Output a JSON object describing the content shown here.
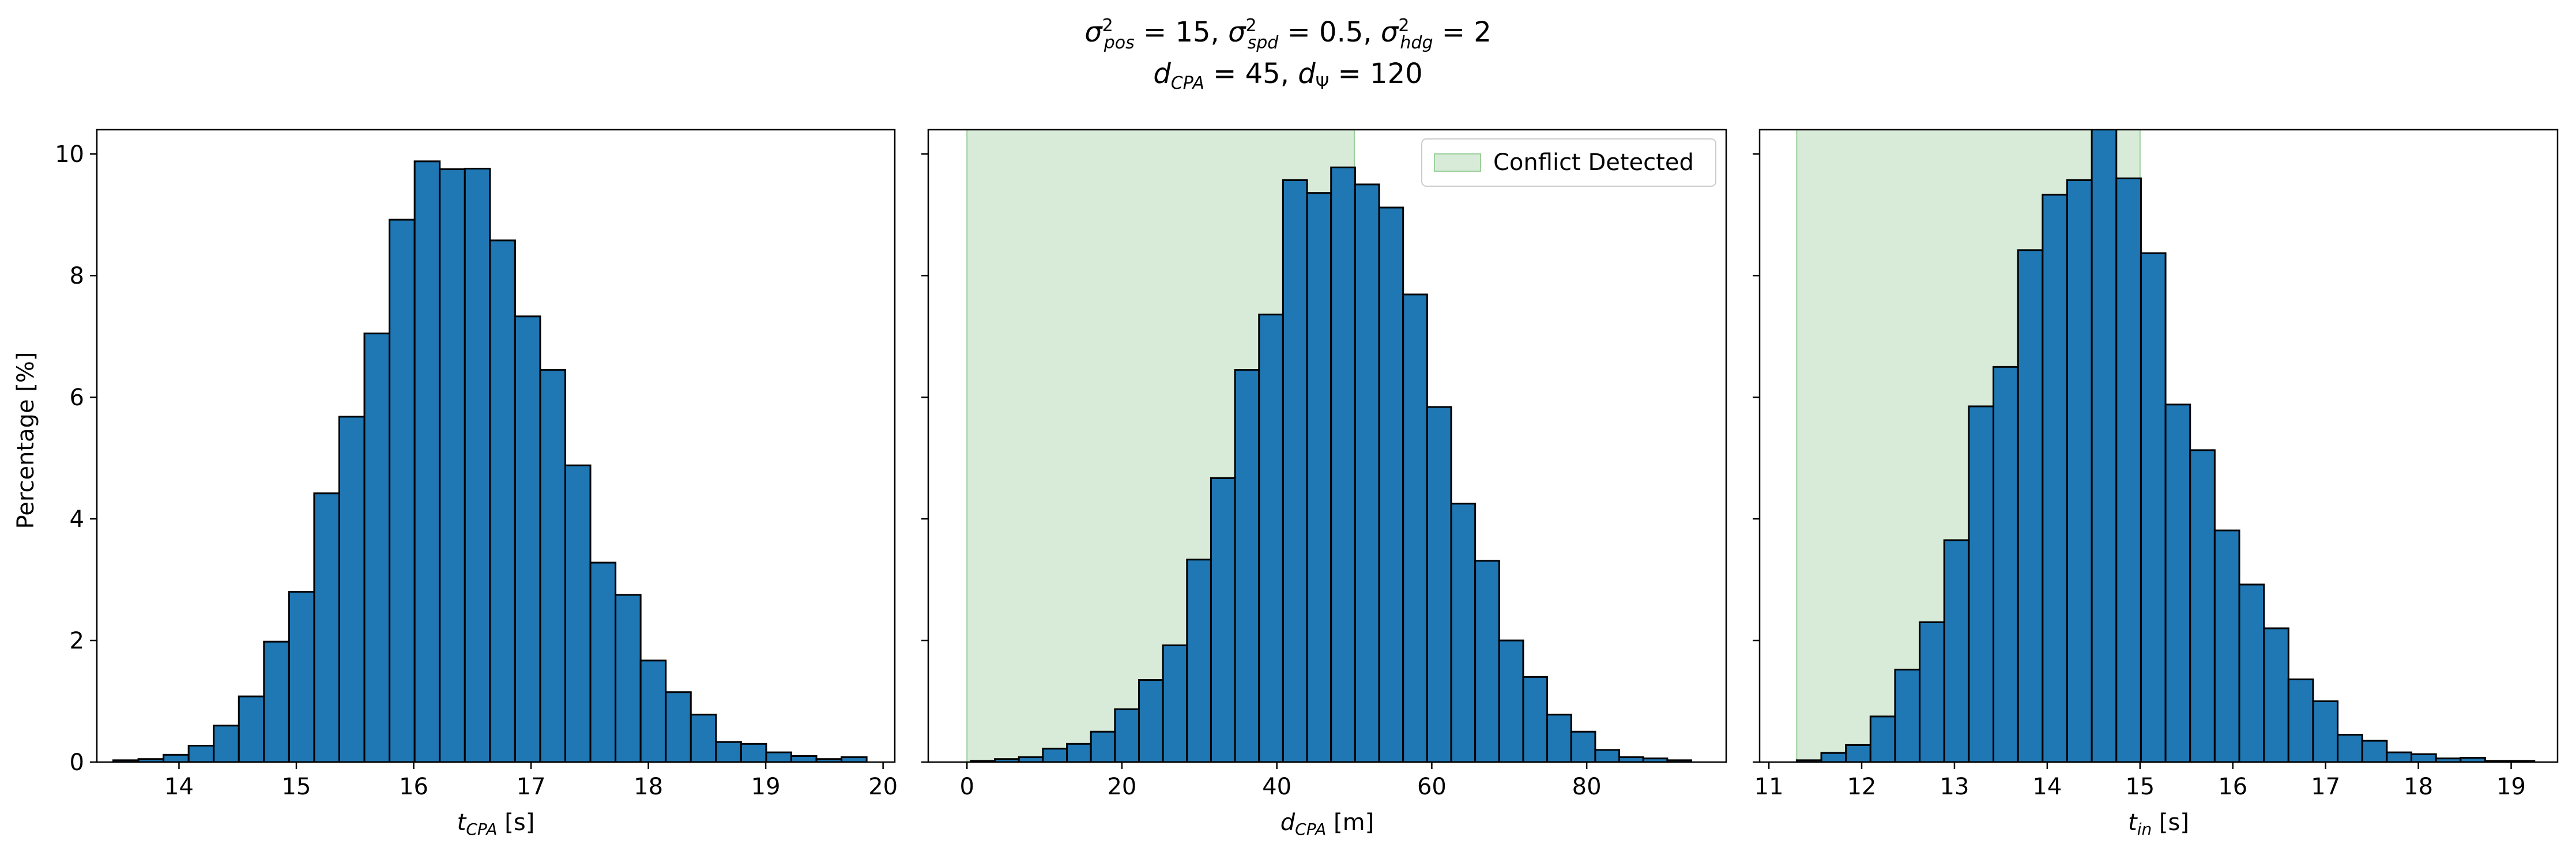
{
  "suptitle": {
    "line1": "σ²pos = 15, σ²spd = 0.5, σ²hdg = 2",
    "line2": "dCPA = 45, dΨ = 120"
  },
  "shared_ylabel": "Percentage [%]",
  "colors": {
    "bar_fill": "#1f77b4",
    "bar_edge": "#000000",
    "conflict_region": "#d8ebd8",
    "conflict_edge": "#9ccf9c"
  },
  "chart_data": [
    {
      "type": "bar",
      "title": "",
      "xlabel": "tCPA [s]",
      "xlabel_main": "t",
      "xlabel_sub": "CPA",
      "xlabel_unit": " [s]",
      "ylabel": "Percentage [%]",
      "xlim": [
        13.3,
        20.1
      ],
      "ylim": [
        0,
        10.4
      ],
      "xticks": [
        14,
        15,
        16,
        17,
        18,
        19,
        20
      ],
      "yticks": [
        0,
        2,
        4,
        6,
        8,
        10
      ],
      "bin_start": 13.44,
      "bin_width": 0.214,
      "values": [
        0.03,
        0.05,
        0.12,
        0.27,
        0.6,
        1.08,
        1.98,
        2.8,
        4.42,
        5.68,
        7.05,
        8.92,
        9.88,
        9.75,
        9.76,
        8.58,
        7.33,
        6.45,
        4.88,
        3.28,
        2.75,
        1.67,
        1.15,
        0.78,
        0.33,
        0.3,
        0.16,
        0.1,
        0.05,
        0.08
      ],
      "legend": null
    },
    {
      "type": "bar",
      "title": "",
      "xlabel": "dCPA [m]",
      "xlabel_main": "d",
      "xlabel_sub": "CPA",
      "xlabel_unit": " [m]",
      "xlim": [
        -5,
        98
      ],
      "ylim": [
        0,
        10.4
      ],
      "xticks": [
        0,
        20,
        40,
        60,
        80
      ],
      "yticks": [
        0,
        2,
        4,
        6,
        8,
        10
      ],
      "bin_start": 0.5,
      "bin_width": 3.1,
      "values": [
        0.02,
        0.05,
        0.08,
        0.22,
        0.3,
        0.5,
        0.87,
        1.35,
        1.92,
        3.33,
        4.67,
        6.45,
        7.36,
        9.57,
        9.36,
        9.78,
        9.5,
        9.12,
        7.69,
        5.84,
        4.25,
        3.31,
        2.0,
        1.4,
        0.78,
        0.5,
        0.2,
        0.08,
        0.06,
        0.03
      ],
      "conflict_region": [
        0,
        50
      ],
      "legend": {
        "label": "Conflict Detected",
        "position": "top-right"
      }
    },
    {
      "type": "bar",
      "title": "",
      "xlabel": "tin [s]",
      "xlabel_main": "t",
      "xlabel_sub": "in",
      "xlabel_unit": " [s]",
      "xlim": [
        10.9,
        19.5
      ],
      "ylim": [
        0,
        10.4
      ],
      "xticks": [
        11,
        12,
        13,
        14,
        15,
        16,
        17,
        18,
        19
      ],
      "yticks": [
        0,
        2,
        4,
        6,
        8,
        10
      ],
      "bin_start": 11.3,
      "bin_width": 0.265,
      "values": [
        0.03,
        0.15,
        0.28,
        0.75,
        1.52,
        2.3,
        3.65,
        5.85,
        6.5,
        8.42,
        9.33,
        9.57,
        10.42,
        9.6,
        8.37,
        5.88,
        5.13,
        3.81,
        2.92,
        2.2,
        1.36,
        1.0,
        0.45,
        0.35,
        0.16,
        0.13,
        0.06,
        0.07,
        0.02,
        0.02
      ],
      "conflict_region": [
        11.3,
        15.0
      ],
      "legend": null
    }
  ]
}
